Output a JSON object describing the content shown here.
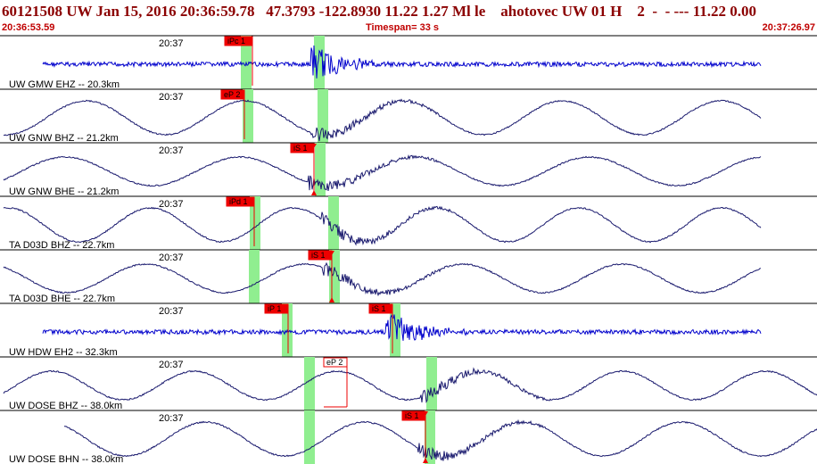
{
  "header": {
    "title": "60121508 UW Jan 15, 2016 20:36:59.78   47.3793 -122.8930 11.22 1.27 Ml le    ahotovec UW 01 H    2  -  - --- 11.22 0.00",
    "start_time": "20:36:53.59",
    "timespan_label": "Timespan=",
    "timespan_value": "33 s",
    "end_time": "20:37:26.97"
  },
  "colors": {
    "header_text": "#8b0000",
    "trace_blue": "#0000cc",
    "trace_navy": "#1a1a6e",
    "pick_box": "#ee0000",
    "pick_window": "#90ee90"
  },
  "traces": [
    {
      "id": "gmw-ehz",
      "label": "UW GMW EHZ -- 20.3km",
      "time": "20:37",
      "color": "#0000cc",
      "mode": "noise",
      "picks": [
        {
          "label": "iPc 1",
          "x": 252,
          "filled": true,
          "tick": false
        }
      ],
      "windows": [
        270,
        352
      ]
    },
    {
      "id": "gnw-bhz",
      "label": "UW GNW BHZ -- 21.2km",
      "time": "20:37",
      "color": "#1a1a6e",
      "mode": "wave",
      "picks": [
        {
          "label": "eP 2",
          "x": 248,
          "filled": true,
          "tick": false
        }
      ],
      "windows": [
        272,
        356
      ]
    },
    {
      "id": "gnw-bhe",
      "label": "UW GNW BHE -- 21.2km",
      "time": "20:37",
      "color": "#1a1a6e",
      "mode": "wave",
      "picks": [
        {
          "label": "iS 1",
          "x": 326,
          "filled": true,
          "tick": true
        }
      ],
      "windows": [
        353
      ]
    },
    {
      "id": "d03d-bhz",
      "label": "TA D03D BHZ -- 22.7km",
      "time": "20:37",
      "color": "#1a1a6e",
      "mode": "wave",
      "picks": [
        {
          "label": "iPd 1",
          "x": 254,
          "filled": true,
          "tick": false
        }
      ],
      "windows": [
        280,
        368
      ]
    },
    {
      "id": "d03d-bhe",
      "label": "TA D03D BHE -- 22.7km",
      "time": "20:37",
      "color": "#1a1a6e",
      "mode": "wave",
      "picks": [
        {
          "label": "iS 1",
          "x": 346,
          "filled": true,
          "tick": true
        }
      ],
      "windows": [
        279,
        369
      ]
    },
    {
      "id": "hdw-eh2",
      "label": "UW HDW EH2 -- 32.3km",
      "time": "20:37",
      "color": "#0000cc",
      "mode": "noise",
      "picks": [
        {
          "label": "iP 1",
          "x": 297,
          "filled": true,
          "tick": false
        },
        {
          "label": "iS 1",
          "x": 414,
          "filled": true,
          "tick": false
        }
      ],
      "windows": [
        316,
        437
      ]
    },
    {
      "id": "dose-bhz",
      "label": "UW DOSE BHZ -- 38.0km",
      "time": "20:37",
      "color": "#1a1a6e",
      "mode": "wave",
      "picks": [
        {
          "label": "eP 2",
          "x": 363,
          "filled": false,
          "tick": false
        }
      ],
      "windows": [
        341,
        478
      ]
    },
    {
      "id": "dose-bhn",
      "label": "UW DOSE BHN -- 38.0km",
      "time": "20:37",
      "color": "#1a1a6e",
      "mode": "wave",
      "picks": [
        {
          "label": "iS 1",
          "x": 451,
          "filled": true,
          "tick": true
        }
      ],
      "windows": [
        341,
        476
      ]
    }
  ]
}
